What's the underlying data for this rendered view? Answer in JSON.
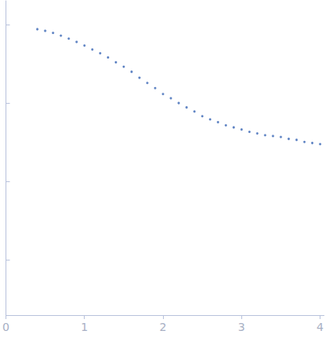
{
  "chart_data": {
    "type": "scatter",
    "color": "#3a66b5",
    "marker": "circle",
    "log": "y",
    "grid": false,
    "tick_labels": "x",
    "x": [
      0.4,
      0.5,
      0.6,
      0.7,
      0.8,
      0.9,
      1.0,
      1.1,
      1.2,
      1.3,
      1.4,
      1.5,
      1.6,
      1.7,
      1.8,
      1.9,
      2.0,
      2.1,
      2.2,
      2.3,
      2.4,
      2.5,
      2.6,
      2.7,
      2.8,
      2.9,
      3.0,
      3.1,
      3.2,
      3.3,
      3.4,
      3.5,
      3.6,
      3.7,
      3.8,
      3.9,
      4.0
    ],
    "values": [
      0.87,
      0.83,
      0.78,
      0.72,
      0.66,
      0.6,
      0.54,
      0.48,
      0.43,
      0.38,
      0.33,
      0.29,
      0.25,
      0.21,
      0.18,
      0.155,
      0.13,
      0.115,
      0.1,
      0.088,
      0.078,
      0.068,
      0.062,
      0.057,
      0.052,
      0.049,
      0.046,
      0.043,
      0.041,
      0.039,
      0.038,
      0.037,
      0.035,
      0.034,
      0.032,
      0.031,
      0.03
    ],
    "xlim": [
      0,
      4.05
    ],
    "xticks": [
      0,
      1,
      2,
      3,
      4
    ],
    "ylim": [
      0.0002,
      2
    ],
    "yticks": [
      0.001,
      0.01,
      0.1,
      1
    ]
  }
}
